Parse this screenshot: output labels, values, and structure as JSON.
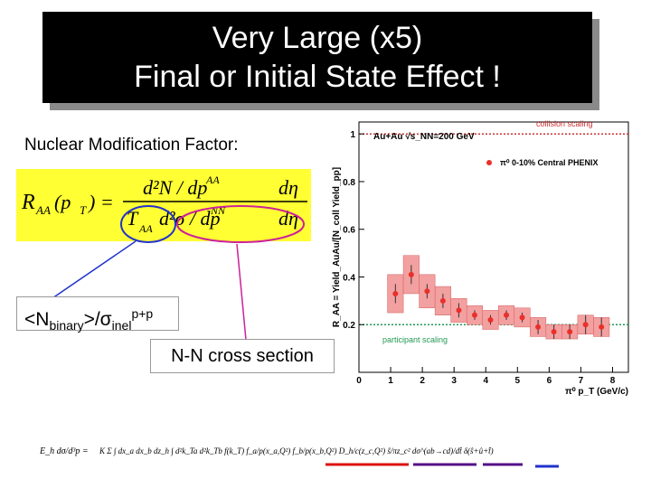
{
  "title": {
    "line1": "Very Large (x5)",
    "line2": "Final or Initial State Effect !"
  },
  "nuclear_label": "Nuclear Modification Factor:",
  "formula": {
    "lhs": "R",
    "lhs_sub": "AA",
    "lhs_arg": "(p",
    "lhs_arg_sub": "T",
    "lhs_close": ") =",
    "numerator": "d²N / dp",
    "numerator_sup": "AA",
    "numerator_tail": "dη",
    "den_t": "T",
    "den_t_sub": "AA",
    "den_rest": "d²σ / dp",
    "den_sup": "NN",
    "den_tail": "dη"
  },
  "nbinary_label": {
    "pre": "<N",
    "sub1": "binary",
    "mid": ">/σ",
    "sub2": "inel",
    "sup": "p+p"
  },
  "nn_label": "N-N cross section",
  "colors": {
    "title_bg": "#000000",
    "formula_bg": "#ffff33",
    "data_red": "#e8302a",
    "box_pink": "#f3a0a0",
    "blue_line": "#2233cc",
    "purple_line": "#cc2299",
    "collision_scaling": "#cc3333",
    "participant_scaling": "#229955"
  },
  "chart_data": {
    "type": "scatter",
    "title": "",
    "system_label": "Au+Au √s_NN=200 GeV",
    "legend": "π⁰ 0-10% Central PHENIX",
    "collision_scaling_label": "collision scaling",
    "collision_scaling_value": 1.0,
    "participant_scaling_label": "participant scaling",
    "participant_scaling_value": 0.2,
    "ylabel": "R_AA = Yield_AuAu/[N_coll Yield_pp]",
    "xlabel": "π⁰ p_T (GeV/c)",
    "xlim": [
      0,
      8.5
    ],
    "ylim": [
      0,
      1.05
    ],
    "x_ticks": [
      "0",
      "1",
      "2",
      "3",
      "4",
      "5",
      "6",
      "7",
      "8"
    ],
    "y_ticks": [
      "0.2",
      "0.4",
      "0.6",
      "0.8",
      "1"
    ],
    "points": [
      {
        "x": 1.15,
        "y": 0.33,
        "err": 0.04,
        "sys": 0.08
      },
      {
        "x": 1.65,
        "y": 0.41,
        "err": 0.04,
        "sys": 0.08
      },
      {
        "x": 2.15,
        "y": 0.34,
        "err": 0.03,
        "sys": 0.07
      },
      {
        "x": 2.65,
        "y": 0.3,
        "err": 0.03,
        "sys": 0.06
      },
      {
        "x": 3.15,
        "y": 0.26,
        "err": 0.03,
        "sys": 0.05
      },
      {
        "x": 3.65,
        "y": 0.24,
        "err": 0.02,
        "sys": 0.04
      },
      {
        "x": 4.15,
        "y": 0.22,
        "err": 0.02,
        "sys": 0.04
      },
      {
        "x": 4.65,
        "y": 0.24,
        "err": 0.02,
        "sys": 0.04
      },
      {
        "x": 5.15,
        "y": 0.23,
        "err": 0.02,
        "sys": 0.04
      },
      {
        "x": 5.65,
        "y": 0.19,
        "err": 0.03,
        "sys": 0.04
      },
      {
        "x": 6.15,
        "y": 0.17,
        "err": 0.03,
        "sys": 0.03
      },
      {
        "x": 6.65,
        "y": 0.17,
        "err": 0.03,
        "sys": 0.03
      },
      {
        "x": 7.15,
        "y": 0.2,
        "err": 0.04,
        "sys": 0.04
      },
      {
        "x": 7.65,
        "y": 0.19,
        "err": 0.04,
        "sys": 0.04
      }
    ]
  },
  "bottom_formula": {
    "lhs": "E_h dσ/d³p =",
    "body": "K Σ ∫ dx_a dx_b dz_h ∫ d²k_Ta d²k_Tb f(k_T) f_a/p(x_a,Q²) f_b/p(x_b,Q²) D_h/c(z_c,Q²) ŝ/πz_c² dσ^(ab→cd)/dt̂ δ(ŝ+û+t̂)"
  }
}
